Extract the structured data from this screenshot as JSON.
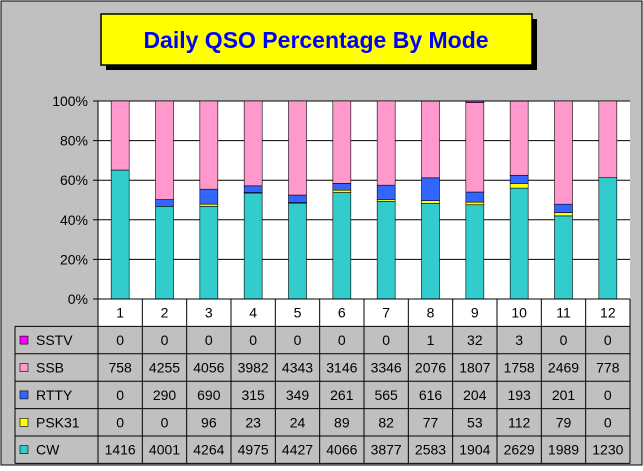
{
  "chart_data": {
    "type": "bar",
    "stacked": "percent",
    "title": "Daily QSO Percentage By Mode",
    "xlabel": "",
    "ylabel": "",
    "ylim": [
      0,
      100
    ],
    "yticks": [
      "0%",
      "20%",
      "40%",
      "60%",
      "80%",
      "100%"
    ],
    "grid": true,
    "legend": "data-table-left",
    "categories": [
      "1",
      "2",
      "3",
      "4",
      "5",
      "6",
      "7",
      "8",
      "9",
      "10",
      "11",
      "12"
    ],
    "series": [
      {
        "name": "SSTV",
        "color": "#ff00ff",
        "values": [
          0,
          0,
          0,
          0,
          0,
          0,
          0,
          1,
          32,
          3,
          0,
          0
        ]
      },
      {
        "name": "SSB",
        "color": "#ff99cc",
        "values": [
          758,
          4255,
          4056,
          3982,
          4343,
          3146,
          3346,
          2076,
          1807,
          1758,
          2469,
          778
        ]
      },
      {
        "name": "RTTY",
        "color": "#3366ff",
        "values": [
          0,
          290,
          690,
          315,
          349,
          261,
          565,
          616,
          204,
          193,
          201,
          0
        ]
      },
      {
        "name": "PSK31",
        "color": "#ffff00",
        "values": [
          0,
          0,
          96,
          23,
          24,
          89,
          82,
          77,
          53,
          112,
          79,
          0
        ]
      },
      {
        "name": "CW",
        "color": "#33cccc",
        "values": [
          1416,
          4001,
          4264,
          4975,
          4427,
          4066,
          3877,
          2583,
          1904,
          2629,
          1989,
          1230
        ]
      }
    ]
  },
  "colors": {
    "background": "#c0c0c0",
    "plot_background": "#ffffff",
    "title_box": "#ffff00",
    "title_text": "#0000ff"
  }
}
